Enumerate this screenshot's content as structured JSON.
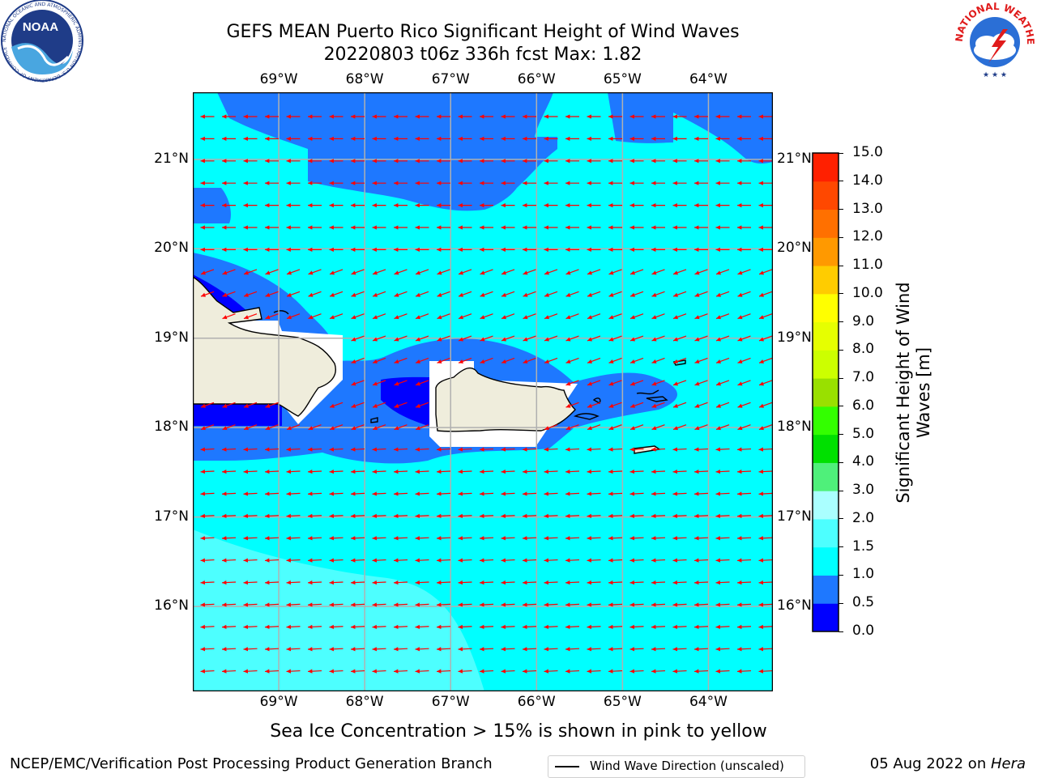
{
  "title": {
    "line1": "GEFS MEAN Puerto Rico Significant Height of Wind Waves",
    "line2": "20220803 t06z 336h fcst   Max: 1.82"
  },
  "map": {
    "lon_labels": [
      "69°W",
      "68°W",
      "67°W",
      "66°W",
      "65°W",
      "64°W"
    ],
    "lat_labels": [
      "21°N",
      "20°N",
      "19°N",
      "18°N",
      "17°N",
      "16°N"
    ],
    "lon_range": [
      -70.0,
      -63.25
    ],
    "lat_range": [
      15.05,
      21.75
    ],
    "gridlines": true,
    "arrow_color": "#ff0000",
    "arrow_direction": "toward west"
  },
  "legend": {
    "label": "Wind Wave Direction (unscaled)"
  },
  "colorbar": {
    "title": "Significant Height of Wind Waves [m]",
    "ticks": [
      "0.0",
      "0.5",
      "1.0",
      "1.5",
      "2.0",
      "3.0",
      "4.0",
      "5.0",
      "6.0",
      "7.0",
      "8.0",
      "9.0",
      "10.0",
      "11.0",
      "12.0",
      "13.0",
      "14.0",
      "15.0"
    ],
    "colors": [
      "#0000ff",
      "#1e78ff",
      "#00ffff",
      "#4dffff",
      "#aaffff",
      "#4ff07a",
      "#00e000",
      "#33ff00",
      "#99e000",
      "#ccff00",
      "#e6ff00",
      "#ffff00",
      "#ffcc00",
      "#ff9900",
      "#ff7000",
      "#ff4800",
      "#ff2000"
    ]
  },
  "ice_note": "Sea Ice Concentration > 15% is shown in pink to yellow",
  "footer": {
    "left": "NCEP/EMC/Verification Post Processing Product Generation Branch",
    "right_date": "05 Aug 2022 on ",
    "right_host": "Hera"
  },
  "logos": {
    "noaa_text": "NOAA",
    "noaa_ring": "NATIONAL OCEANIC AND ATMOSPHERIC ADMINISTRATION U.S. DEPARTMENT OF COMMERCE",
    "nws_ring": "NATIONAL WEATHER SERVICE"
  }
}
